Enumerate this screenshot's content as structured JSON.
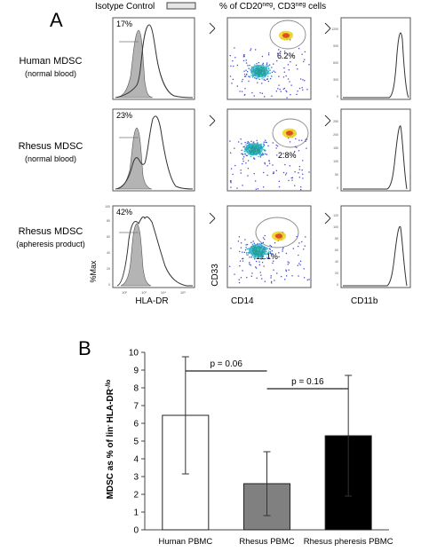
{
  "panel_a": {
    "letter": "A",
    "isotype_legend": "Isotype Control",
    "col_header_parts": [
      "% of CD20",
      "neg",
      ", CD3",
      "neg",
      " cells"
    ],
    "rows": [
      {
        "name": "Human MDSC",
        "sub": "(normal blood)",
        "hla_pct": "17%",
        "gate_pct": "6.2%",
        "cd11b_ticks": [
          "0",
          "300",
          "600",
          "900",
          "1200"
        ]
      },
      {
        "name": "Rhesus MDSC",
        "sub": "(normal blood)",
        "hla_pct": "23%",
        "gate_pct": "2.8%",
        "cd11b_ticks": [
          "0",
          "50",
          "100",
          "150",
          "200",
          "250"
        ]
      },
      {
        "name": "Rhesus MDSC",
        "sub": "(apheresis product)",
        "hla_pct": "42%",
        "gate_pct": "11.1%",
        "cd11b_ticks": [
          "0",
          "20",
          "40",
          "60",
          "80",
          "100",
          "120"
        ]
      }
    ],
    "hist_y_ticks": [
      "0",
      "20",
      "40",
      "60",
      "80",
      "100"
    ],
    "log_ticks": [
      "10²",
      "10³",
      "10⁴",
      "10⁵"
    ],
    "y_label_hist": "%Max",
    "x_label_hla": "HLA-DR",
    "y_label_scatter": "CD33",
    "x_label_scatter": "CD14",
    "x_label_cd11b": "CD11b",
    "colors": {
      "isotype_fill": "#b4b4b4",
      "line": "#333333"
    }
  },
  "chart_data": {
    "type": "bar",
    "letter": "B",
    "categories": [
      "Human PBMC",
      "Rhesus PBMC",
      "Rhesus pheresis PBMC"
    ],
    "values": [
      6.45,
      2.6,
      5.3
    ],
    "error_low": [
      3.15,
      0.8,
      1.9
    ],
    "error_high": [
      9.75,
      4.4,
      8.7
    ],
    "bar_colors": [
      "#ffffff",
      "#808080",
      "#000000"
    ],
    "ylim": [
      0,
      10
    ],
    "yticks": [
      0,
      1,
      2,
      3,
      4,
      5,
      6,
      7,
      8,
      9,
      10
    ],
    "ylabel_parts": [
      "MDSC as % of lin",
      "-",
      "HLA-DR",
      "-/lo"
    ],
    "annotations": [
      {
        "text": "p = 0.06",
        "from": 0,
        "to": 1
      },
      {
        "text": "p = 0.16",
        "from": 1,
        "to": 2
      }
    ]
  }
}
